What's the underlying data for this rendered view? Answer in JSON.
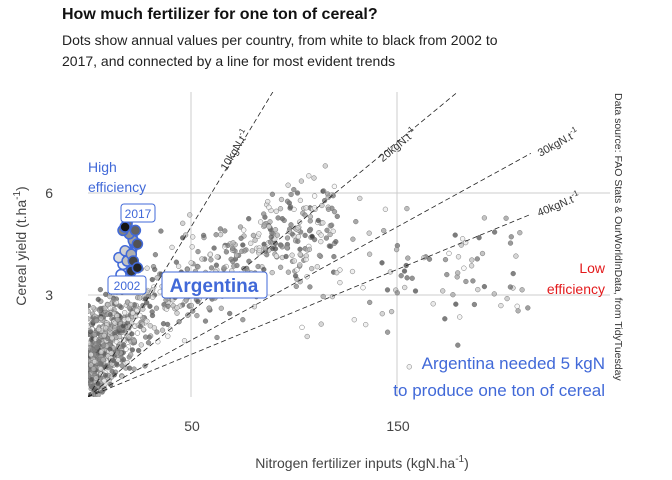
{
  "title": "How much fertilizer for one ton of cereal?",
  "subtitle": "Dots show annual values per country, from white to black from 2002 to 2017, and connected by a line for most evident trends",
  "source": "Data source: FAO Stats & OurWorldInData, from TidyTuesday",
  "colors": {
    "highlight": "#4169d8",
    "low": "#e31a1c",
    "dots": "#999999",
    "grid": "#cccccc"
  },
  "chart_data": {
    "type": "scatter",
    "xlabel": "Nitrogen fertilizer inputs (kgN.ha",
    "xlabel_sup": "-1",
    "xlabel_end": ")",
    "ylabel": "Cereal yield (t.ha",
    "ylabel_sup": "-1",
    "ylabel_end": ")",
    "x_ticks": [
      50,
      150
    ],
    "y_ticks": [
      3,
      6
    ],
    "xlim": [
      0,
      215
    ],
    "ylim": [
      0,
      9
    ],
    "grid": true,
    "reference_lines": [
      {
        "label": "10kgN.t",
        "label_sup": "-1",
        "slope_kgN_per_t": 10
      },
      {
        "label": "20kgN.t",
        "label_sup": "-1",
        "slope_kgN_per_t": 20
      },
      {
        "label": "30kgN.t",
        "label_sup": "-1",
        "slope_kgN_per_t": 30
      },
      {
        "label": "40kgN.t",
        "label_sup": "-1",
        "slope_kgN_per_t": 40
      }
    ],
    "highlight_series": {
      "name": "Argentina",
      "points": [
        {
          "x": 16,
          "y": 3.6
        },
        {
          "x": 17,
          "y": 3.9
        },
        {
          "x": 15,
          "y": 4.1
        },
        {
          "x": 18,
          "y": 4.3
        },
        {
          "x": 19,
          "y": 4.0
        },
        {
          "x": 21,
          "y": 4.2
        },
        {
          "x": 22,
          "y": 4.6
        },
        {
          "x": 20,
          "y": 4.8
        },
        {
          "x": 17,
          "y": 4.9
        },
        {
          "x": 19,
          "y": 5.1
        },
        {
          "x": 23,
          "y": 4.9
        },
        {
          "x": 24,
          "y": 4.5
        },
        {
          "x": 22,
          "y": 4.0
        },
        {
          "x": 21,
          "y": 3.7
        },
        {
          "x": 24,
          "y": 3.8
        },
        {
          "x": 18,
          "y": 5.0
        }
      ],
      "start_label": "2002",
      "end_label": "2017"
    },
    "annotations": {
      "high": [
        "High",
        "efficiency"
      ],
      "low": [
        "Low",
        "efficiency"
      ],
      "message": [
        "Argentina needed 5 kgN",
        "to produce one ton of cereal"
      ]
    }
  }
}
